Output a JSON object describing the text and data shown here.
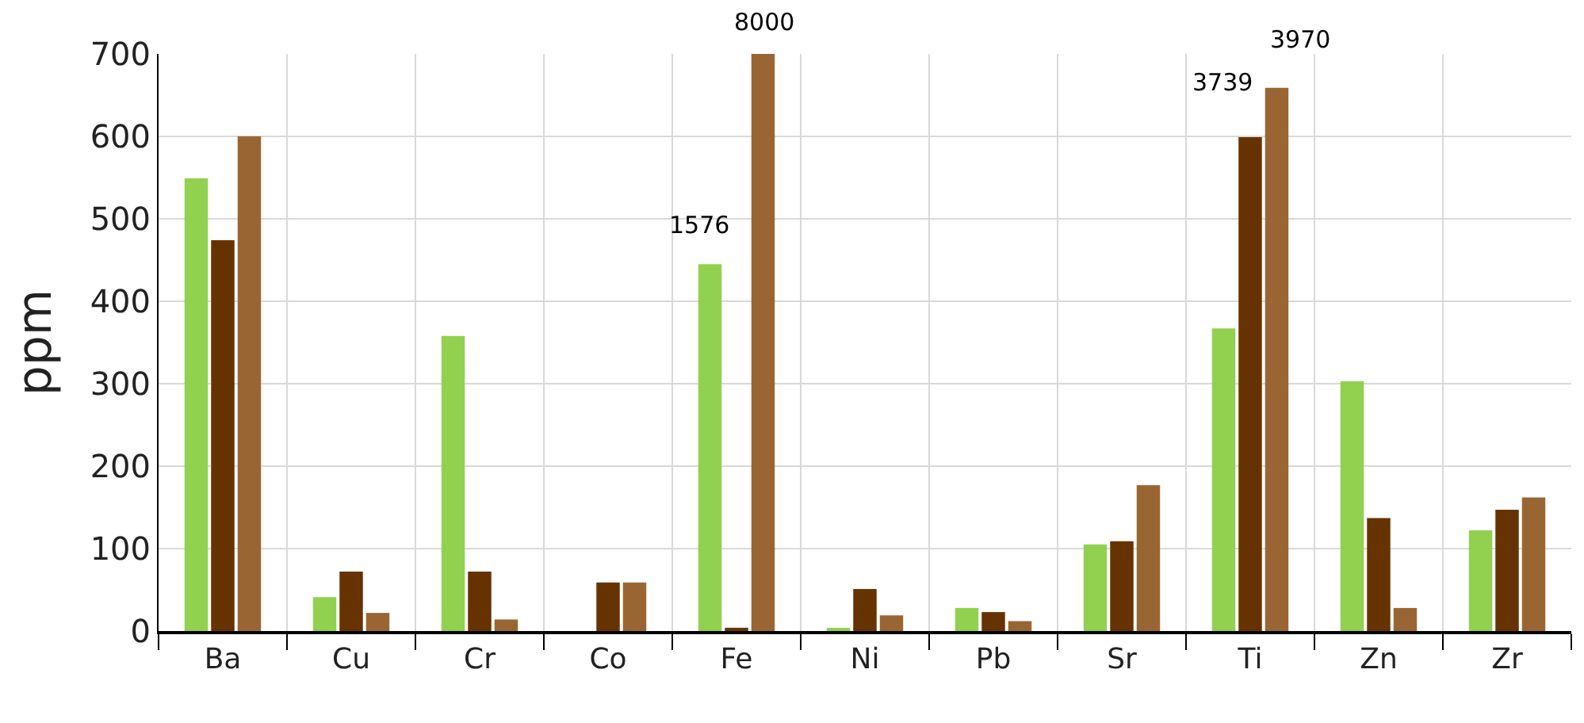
{
  "chart_data": {
    "type": "bar",
    "ylabel": "ppm",
    "categories": [
      "Ba",
      "Cu",
      "Cr",
      "Co",
      "Fe",
      "Ni",
      "Pb",
      "Sr",
      "Ti",
      "Zn",
      "Zr"
    ],
    "series": [
      {
        "color": "#92d050",
        "values": [
          549,
          41,
          358,
          null,
          445,
          3,
          28,
          105,
          367,
          303,
          122
        ]
      },
      {
        "color": "#663300",
        "values": [
          474,
          72,
          72,
          59,
          4,
          51,
          23,
          109,
          599,
          137,
          147
        ]
      },
      {
        "color": "#996633",
        "values": [
          600,
          22,
          14,
          59,
          700,
          19,
          12,
          177,
          659,
          28,
          162
        ]
      }
    ],
    "annotations": [
      "1576",
      "8000",
      "3739",
      "3970"
    ],
    "ylim": [
      0,
      700
    ],
    "yticks": [
      0,
      100,
      200,
      300,
      400,
      500,
      600,
      700
    ],
    "grid": true,
    "legend": false
  }
}
